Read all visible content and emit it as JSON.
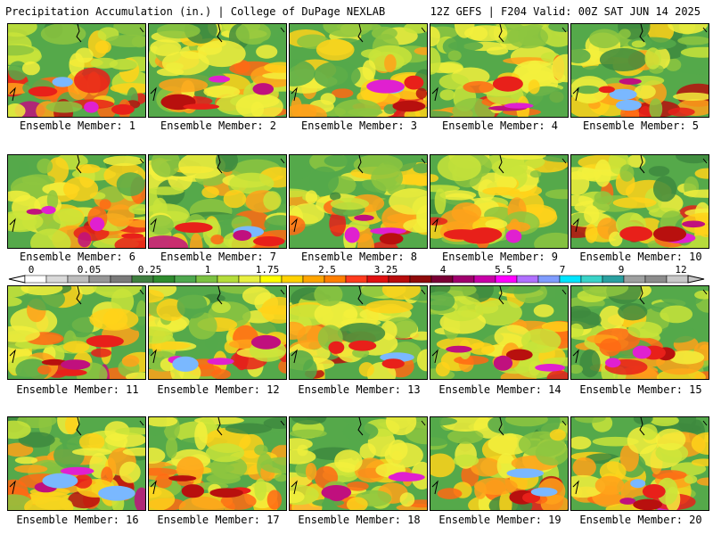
{
  "header": {
    "left": "Precipitation Accumulation (in.) | College of DuPage NEXLAB",
    "right": "12Z GEFS | F204 Valid: 00Z SAT JUN 14 2025"
  },
  "colorbar": {
    "labels": [
      "0",
      "0.05",
      "0.25",
      "1",
      "1.75",
      "2.5",
      "3.25",
      "4",
      "5.5",
      "7",
      "9",
      "12"
    ],
    "colors": [
      "#ffffff",
      "#d9d9d9",
      "#bdbdbd",
      "#969696",
      "#7a7a7a",
      "#3f7f3f",
      "#2e8b2e",
      "#4ea84e",
      "#7cc242",
      "#b5dd3b",
      "#e8f040",
      "#ffff00",
      "#ffd200",
      "#ffa500",
      "#ff7f00",
      "#ff3b1e",
      "#e01010",
      "#b80c0c",
      "#8f0a0a",
      "#7a0036",
      "#a0006e",
      "#c800a8",
      "#ff00ff",
      "#b070ff",
      "#7f9cff",
      "#00e5ff",
      "#3ad3c8",
      "#2aa0a0",
      "#9ea0a0",
      "#8c8c8c",
      "#c8c8c8"
    ]
  },
  "panels": [
    {
      "caption": "Ensemble Member: 1"
    },
    {
      "caption": "Ensemble Member: 2"
    },
    {
      "caption": "Ensemble Member: 3"
    },
    {
      "caption": "Ensemble Member: 4"
    },
    {
      "caption": "Ensemble Member: 5"
    },
    {
      "caption": "Ensemble Member: 6"
    },
    {
      "caption": "Ensemble Member: 7"
    },
    {
      "caption": "Ensemble Member: 8"
    },
    {
      "caption": "Ensemble Member: 9"
    },
    {
      "caption": "Ensemble Member: 10"
    },
    {
      "caption": "Ensemble Member: 11"
    },
    {
      "caption": "Ensemble Member: 12"
    },
    {
      "caption": "Ensemble Member: 13"
    },
    {
      "caption": "Ensemble Member: 14"
    },
    {
      "caption": "Ensemble Member: 15"
    },
    {
      "caption": "Ensemble Member: 16"
    },
    {
      "caption": "Ensemble Member: 17"
    },
    {
      "caption": "Ensemble Member: 18"
    },
    {
      "caption": "Ensemble Member: 19"
    },
    {
      "caption": "Ensemble Member: 20"
    }
  ]
}
